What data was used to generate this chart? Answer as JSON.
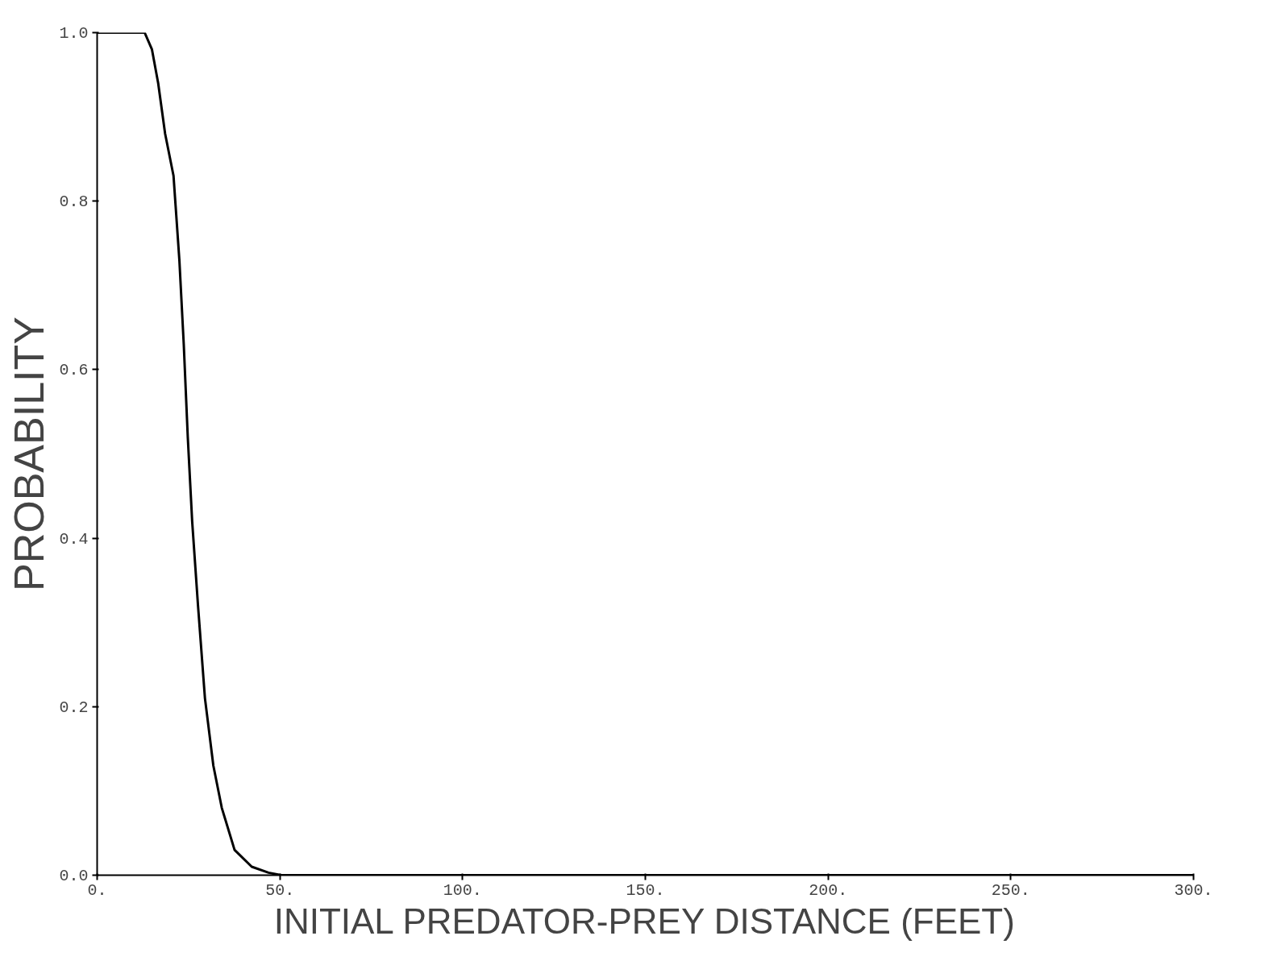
{
  "chart_data": {
    "type": "line",
    "xlabel": "INITIAL PREDATOR-PREY DISTANCE (FEET)",
    "ylabel": "PROBABILITY",
    "x": [
      0,
      5,
      10,
      13,
      15,
      16.7,
      18.6,
      20.9,
      22.5,
      23.7,
      24.8,
      26,
      27.6,
      29.5,
      31.8,
      34.1,
      37.6,
      42.3,
      46.9,
      50.4,
      100,
      150,
      200,
      250,
      300
    ],
    "series": [
      {
        "color": "#000000",
        "values": [
          1,
          1,
          1,
          1,
          0.98,
          0.94,
          0.88,
          0.83,
          0.73,
          0.63,
          0.52,
          0.42,
          0.32,
          0.21,
          0.13,
          0.08,
          0.03,
          0.01,
          0.003,
          0,
          0,
          0,
          0,
          0,
          0
        ]
      }
    ],
    "xlim": [
      0,
      300
    ],
    "ylim": [
      0,
      1
    ],
    "xticks": [
      {
        "value": 0,
        "label": "0."
      },
      {
        "value": 50,
        "label": "50."
      },
      {
        "value": 100,
        "label": "100."
      },
      {
        "value": 150,
        "label": "150."
      },
      {
        "value": 200,
        "label": "200."
      },
      {
        "value": 250,
        "label": "250."
      },
      {
        "value": 300,
        "label": "300."
      }
    ],
    "yticks": [
      {
        "value": 0,
        "label": "0.0"
      },
      {
        "value": 0.2,
        "label": "0.2"
      },
      {
        "value": 0.4,
        "label": "0.4"
      },
      {
        "value": 0.6,
        "label": "0.6"
      },
      {
        "value": 0.8,
        "label": "0.8"
      },
      {
        "value": 1,
        "label": "1.0"
      }
    ],
    "grid": false,
    "marker": "none",
    "line_style": "solid"
  }
}
